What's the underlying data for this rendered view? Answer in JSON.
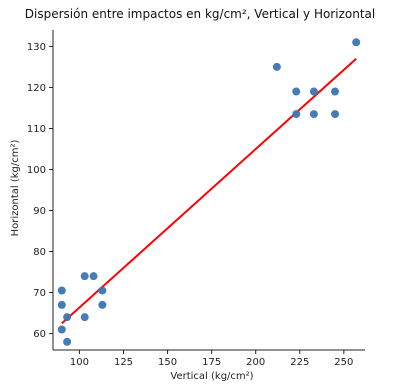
{
  "chart_data": {
    "type": "scatter",
    "title": "Dispersión entre impactos en kg/cm², Vertical y Horizontal",
    "xlabel": "Vertical (kg/cm²)",
    "ylabel": "Horizontal (kg/cm²)",
    "xlim": [
      85,
      262
    ],
    "ylim": [
      56,
      134
    ],
    "xticks": [
      75,
      100,
      125,
      150,
      175,
      200,
      225,
      250
    ],
    "yticks": [
      60,
      70,
      80,
      90,
      100,
      110,
      120,
      130
    ],
    "grid": false,
    "points": [
      {
        "x": 90,
        "y": 70.5
      },
      {
        "x": 90,
        "y": 67
      },
      {
        "x": 90,
        "y": 61
      },
      {
        "x": 93,
        "y": 64
      },
      {
        "x": 93,
        "y": 58
      },
      {
        "x": 103,
        "y": 74
      },
      {
        "x": 103,
        "y": 64
      },
      {
        "x": 108,
        "y": 74
      },
      {
        "x": 113,
        "y": 70.5
      },
      {
        "x": 113,
        "y": 67
      },
      {
        "x": 212,
        "y": 125
      },
      {
        "x": 223,
        "y": 119
      },
      {
        "x": 223,
        "y": 113.5
      },
      {
        "x": 233,
        "y": 119
      },
      {
        "x": 233,
        "y": 113.5
      },
      {
        "x": 245,
        "y": 119
      },
      {
        "x": 245,
        "y": 113.5
      },
      {
        "x": 257,
        "y": 131
      }
    ],
    "trendline": {
      "x": [
        90,
        257
      ],
      "y": [
        62.5,
        127
      ]
    },
    "colors": {
      "points": "#3b75af",
      "trendline": "#ff0000",
      "axes": "#222222"
    }
  }
}
